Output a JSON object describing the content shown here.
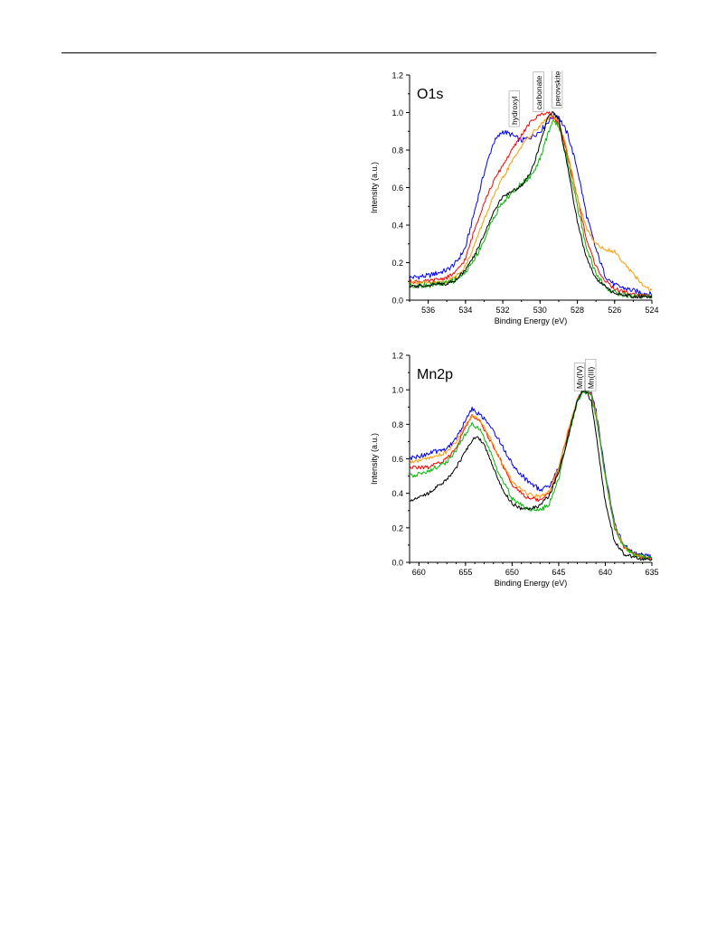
{
  "charts": [
    {
      "type": "line",
      "panel_label": "O1s",
      "xlabel": "Binding Energy (eV)",
      "ylabel": "Intensity (a.u.)",
      "xlim": [
        537,
        524
      ],
      "ylim": [
        0,
        1.2
      ],
      "x_reversed": true,
      "x_ticks": [
        536,
        534,
        532,
        530,
        528,
        526,
        524
      ],
      "y_ticks": [
        "0.0",
        "0.2",
        "0.4",
        "0.6",
        "0.8",
        "1.0",
        "1.2"
      ],
      "annotations": [
        {
          "text": "hydroxyl",
          "x": 531.3,
          "y": 0.93
        },
        {
          "text": "carbonate",
          "x": 530.0,
          "y": 1.01
        },
        {
          "text": "perovskite",
          "x": 529.0,
          "y": 1.03
        }
      ],
      "series": [
        {
          "color": "#0000ff",
          "x": [
            537,
            536,
            535,
            534.5,
            534,
            533.5,
            533,
            532.5,
            532,
            531.5,
            531,
            530.5,
            530,
            529.5,
            529.2,
            529,
            528.5,
            528,
            527.5,
            527,
            526.5,
            526,
            525,
            524
          ],
          "y": [
            0.12,
            0.13,
            0.16,
            0.2,
            0.28,
            0.48,
            0.68,
            0.84,
            0.9,
            0.88,
            0.85,
            0.87,
            0.9,
            0.96,
            0.99,
            0.98,
            0.88,
            0.7,
            0.45,
            0.27,
            0.13,
            0.08,
            0.05,
            0.03
          ]
        },
        {
          "color": "#ff0000",
          "x": [
            537,
            536,
            535,
            534.5,
            534,
            533.5,
            533,
            532.5,
            532,
            531.5,
            531,
            530.5,
            530,
            529.6,
            529.3,
            529,
            528.6,
            528,
            527.5,
            527,
            526.5,
            526,
            525,
            524
          ],
          "y": [
            0.1,
            0.1,
            0.12,
            0.15,
            0.22,
            0.38,
            0.52,
            0.63,
            0.72,
            0.8,
            0.88,
            0.95,
            0.99,
            1.0,
            0.98,
            0.94,
            0.8,
            0.55,
            0.32,
            0.18,
            0.1,
            0.06,
            0.03,
            0.02
          ]
        },
        {
          "color": "#ff9900",
          "x": [
            537,
            536,
            535,
            534.5,
            534,
            533.5,
            533,
            532.5,
            532,
            531.5,
            531,
            530.5,
            530,
            529.6,
            529.3,
            529,
            528.6,
            528,
            527.5,
            527,
            526.5,
            526,
            525.5,
            525,
            524.5,
            524
          ],
          "y": [
            0.1,
            0.09,
            0.1,
            0.13,
            0.18,
            0.3,
            0.43,
            0.55,
            0.65,
            0.74,
            0.82,
            0.88,
            0.93,
            0.97,
            0.98,
            0.95,
            0.82,
            0.55,
            0.38,
            0.3,
            0.27,
            0.26,
            0.2,
            0.14,
            0.08,
            0.05
          ]
        },
        {
          "color": "#00bb00",
          "x": [
            537,
            536,
            535,
            534.5,
            534,
            533.5,
            533,
            532.5,
            532,
            531.5,
            531,
            530.5,
            530,
            529.6,
            529.3,
            529,
            528.6,
            528,
            527.5,
            527,
            526.5,
            526,
            525,
            524
          ],
          "y": [
            0.08,
            0.08,
            0.09,
            0.11,
            0.15,
            0.22,
            0.32,
            0.44,
            0.52,
            0.57,
            0.62,
            0.66,
            0.75,
            0.88,
            0.96,
            0.93,
            0.78,
            0.5,
            0.28,
            0.14,
            0.07,
            0.04,
            0.02,
            0.02
          ]
        },
        {
          "color": "#000000",
          "x": [
            537,
            536,
            535,
            534.5,
            534,
            533.5,
            533,
            532.5,
            532,
            531.5,
            531,
            530.5,
            530,
            529.6,
            529.3,
            529,
            528.6,
            528,
            527.5,
            527,
            526.5,
            526,
            525,
            524
          ],
          "y": [
            0.07,
            0.08,
            0.09,
            0.11,
            0.16,
            0.24,
            0.35,
            0.47,
            0.55,
            0.58,
            0.61,
            0.68,
            0.83,
            0.97,
            1.0,
            0.96,
            0.75,
            0.42,
            0.22,
            0.12,
            0.07,
            0.04,
            0.02,
            0.02
          ]
        }
      ]
    },
    {
      "type": "line",
      "panel_label": "Mn2p",
      "xlabel": "Binding Energy (eV)",
      "ylabel": "Intensity (a.u.)",
      "xlim": [
        661,
        635
      ],
      "ylim": [
        0,
        1.2
      ],
      "x_reversed": true,
      "x_ticks": [
        660,
        655,
        650,
        645,
        640,
        635
      ],
      "y_ticks": [
        "0.0",
        "0.2",
        "0.4",
        "0.6",
        "0.8",
        "1.0",
        "1.2"
      ],
      "annotations": [
        {
          "text": "Mn(IV)",
          "x": 642.6,
          "y": 1.0
        },
        {
          "text": "Mn(III)",
          "x": 641.4,
          "y": 1.0
        }
      ],
      "series": [
        {
          "color": "#0000ff",
          "x": [
            661,
            659,
            657,
            656,
            655,
            654.3,
            653.5,
            652.5,
            651.5,
            650,
            648.5,
            647,
            646,
            645,
            644,
            643,
            642.5,
            642,
            641.5,
            641,
            640,
            639,
            638,
            637,
            636,
            635
          ],
          "y": [
            0.6,
            0.63,
            0.66,
            0.72,
            0.82,
            0.89,
            0.86,
            0.8,
            0.72,
            0.57,
            0.48,
            0.42,
            0.44,
            0.55,
            0.75,
            0.94,
            0.99,
            1.0,
            0.98,
            0.88,
            0.52,
            0.22,
            0.1,
            0.06,
            0.04,
            0.03
          ]
        },
        {
          "color": "#ff0000",
          "x": [
            661,
            659,
            657,
            656,
            655,
            654.3,
            653.5,
            652.5,
            651.5,
            650,
            648.5,
            647,
            646,
            645,
            644,
            643,
            642.5,
            642,
            641.5,
            641,
            640,
            639,
            638,
            637,
            636,
            635
          ],
          "y": [
            0.55,
            0.55,
            0.6,
            0.67,
            0.78,
            0.85,
            0.82,
            0.72,
            0.62,
            0.45,
            0.38,
            0.36,
            0.4,
            0.54,
            0.75,
            0.94,
            0.99,
            1.0,
            0.97,
            0.86,
            0.5,
            0.2,
            0.09,
            0.05,
            0.03,
            0.02
          ]
        },
        {
          "color": "#ff9900",
          "x": [
            661,
            659,
            657,
            656,
            655,
            654.3,
            653.5,
            652.5,
            651.5,
            650,
            648.5,
            647,
            646,
            645,
            644,
            643,
            642.5,
            642,
            641.5,
            641,
            640,
            639,
            638,
            637,
            636,
            635
          ],
          "y": [
            0.58,
            0.6,
            0.64,
            0.7,
            0.79,
            0.85,
            0.83,
            0.74,
            0.62,
            0.47,
            0.4,
            0.38,
            0.41,
            0.55,
            0.76,
            0.94,
            0.99,
            1.0,
            0.97,
            0.86,
            0.5,
            0.21,
            0.09,
            0.05,
            0.03,
            0.02
          ]
        },
        {
          "color": "#00bb00",
          "x": [
            661,
            659,
            657,
            656,
            655,
            654.3,
            653.5,
            652.5,
            651.5,
            650,
            648.5,
            647,
            646,
            645,
            644,
            643,
            642.5,
            642,
            641.5,
            641,
            640,
            639,
            638,
            637,
            636,
            635
          ],
          "y": [
            0.5,
            0.53,
            0.58,
            0.65,
            0.74,
            0.8,
            0.77,
            0.66,
            0.53,
            0.37,
            0.31,
            0.3,
            0.34,
            0.49,
            0.72,
            0.93,
            0.98,
            0.99,
            0.96,
            0.85,
            0.5,
            0.2,
            0.09,
            0.05,
            0.03,
            0.02
          ]
        },
        {
          "color": "#000000",
          "x": [
            661,
            659,
            657,
            656,
            655,
            654.3,
            653.7,
            653,
            652,
            651,
            650,
            649,
            648,
            647,
            646,
            645,
            644,
            643.5,
            643,
            642.5,
            642,
            641.5,
            641,
            640,
            639,
            638,
            637,
            636,
            635
          ],
          "y": [
            0.36,
            0.4,
            0.48,
            0.55,
            0.64,
            0.71,
            0.73,
            0.68,
            0.55,
            0.42,
            0.34,
            0.31,
            0.31,
            0.33,
            0.39,
            0.52,
            0.72,
            0.84,
            0.94,
            0.99,
            0.99,
            0.93,
            0.75,
            0.35,
            0.12,
            0.05,
            0.03,
            0.02,
            0.02
          ]
        }
      ]
    }
  ]
}
